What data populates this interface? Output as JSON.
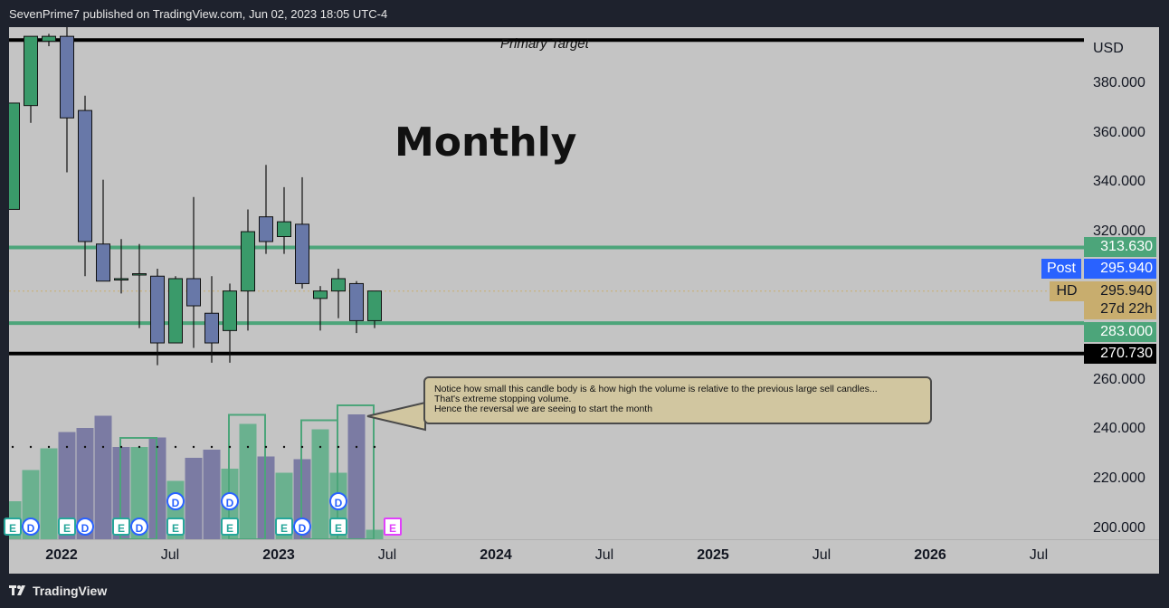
{
  "header": {
    "publisher": "SevenPrime7 published on TradingView.com, Jun 02, 2023 18:05 UTC-4"
  },
  "footer": {
    "brand": "TradingView",
    "logo_icon": "tradingview-logo-icon"
  },
  "annotations": {
    "chart_title": "Monthly",
    "primary_target": "Primary Target",
    "note_lines": [
      "Notice how small this candle body is & how high the volume is relative to the previous large sell candles...",
      "That's extreme stopping volume.",
      "Hence the reversal we are seeing to start the month"
    ]
  },
  "price_axis": {
    "currency": "USD",
    "ticks": [
      "380.000",
      "360.000",
      "340.000",
      "320.000",
      "260.000",
      "240.000",
      "220.000",
      "200.000"
    ]
  },
  "price_tags": {
    "upper_level": "313.630",
    "post_label": "Post",
    "post_price": "295.940",
    "hd_label": "HD",
    "hd_price": "295.940",
    "countdown": "27d 22h",
    "lower_level": "283.000",
    "support_level": "270.730"
  },
  "time_axis": {
    "labels": [
      {
        "text": "2022",
        "bold": true
      },
      {
        "text": "Jul",
        "bold": false
      },
      {
        "text": "2023",
        "bold": true
      },
      {
        "text": "Jul",
        "bold": false
      },
      {
        "text": "2024",
        "bold": true
      },
      {
        "text": "Jul",
        "bold": false
      },
      {
        "text": "2025",
        "bold": true
      },
      {
        "text": "Jul",
        "bold": false
      },
      {
        "text": "2026",
        "bold": true
      },
      {
        "text": "Jul",
        "bold": false
      }
    ]
  },
  "events": {
    "earnings": "E",
    "dividend": "D"
  },
  "colors": {
    "bull": "#3a9a6a",
    "bear": "#6878a8",
    "level_green": "#4ca57a",
    "level_black": "#000000",
    "post_blue": "#2962ff",
    "hd_gold": "#c8ad6e",
    "background": "#c4c4c4"
  },
  "chart_data": {
    "type": "candlestick",
    "timeframe": "Monthly",
    "currency": "USD",
    "ylim": [
      196,
      398
    ],
    "levels": [
      {
        "label": "Primary Target",
        "value": 397.5,
        "color": "#000000"
      },
      {
        "label": "",
        "value": 313.63,
        "color": "#4ca57a"
      },
      {
        "label": "",
        "value": 283.0,
        "color": "#4ca57a"
      },
      {
        "label": "",
        "value": 270.73,
        "color": "#000000"
      }
    ],
    "candles": [
      {
        "date": "2021-10",
        "open": 329,
        "high": 372,
        "low": 329,
        "close": 372
      },
      {
        "date": "2021-11",
        "open": 371,
        "high": 399,
        "low": 364,
        "close": 399
      },
      {
        "date": "2021-12",
        "open": 397,
        "high": 400,
        "low": 395,
        "close": 399
      },
      {
        "date": "2022-01",
        "open": 399,
        "high": 403,
        "low": 344,
        "close": 366
      },
      {
        "date": "2022-02",
        "open": 369,
        "high": 375,
        "low": 302,
        "close": 316
      },
      {
        "date": "2022-03",
        "open": 315,
        "high": 341,
        "low": 302,
        "close": 300
      },
      {
        "date": "2022-04",
        "open": 301,
        "high": 317,
        "low": 295,
        "close": 301
      },
      {
        "date": "2022-05",
        "open": 303,
        "high": 315,
        "low": 281,
        "close": 303
      },
      {
        "date": "2022-06",
        "open": 302,
        "high": 305,
        "low": 266,
        "close": 275
      },
      {
        "date": "2022-07",
        "open": 275,
        "high": 302,
        "low": 275,
        "close": 301
      },
      {
        "date": "2022-08",
        "open": 301,
        "high": 334,
        "low": 273,
        "close": 290
      },
      {
        "date": "2022-09",
        "open": 287,
        "high": 302,
        "low": 267,
        "close": 275
      },
      {
        "date": "2022-10",
        "open": 280,
        "high": 299,
        "low": 267,
        "close": 296
      },
      {
        "date": "2022-11",
        "open": 296,
        "high": 329,
        "low": 280,
        "close": 320
      },
      {
        "date": "2022-12",
        "open": 326,
        "high": 347,
        "low": 311,
        "close": 316
      },
      {
        "date": "2023-01",
        "open": 318,
        "high": 338,
        "low": 311,
        "close": 324
      },
      {
        "date": "2023-02",
        "open": 323,
        "high": 342,
        "low": 297,
        "close": 299
      },
      {
        "date": "2023-03",
        "open": 293,
        "high": 298,
        "low": 280,
        "close": 296
      },
      {
        "date": "2023-04",
        "open": 296,
        "high": 305,
        "low": 285,
        "close": 301
      },
      {
        "date": "2023-05",
        "open": 299,
        "high": 300,
        "low": 279,
        "close": 284
      },
      {
        "date": "2023-06",
        "open": 284,
        "high": 296,
        "low": 281,
        "close": 296
      }
    ],
    "volume": [
      {
        "date": "2021-10",
        "value": 0.28,
        "dir": "up"
      },
      {
        "date": "2021-11",
        "value": 0.51,
        "dir": "up"
      },
      {
        "date": "2021-12",
        "value": 0.67,
        "dir": "up"
      },
      {
        "date": "2022-01",
        "value": 0.79,
        "dir": "down"
      },
      {
        "date": "2022-02",
        "value": 0.82,
        "dir": "down"
      },
      {
        "date": "2022-03",
        "value": 0.91,
        "dir": "down"
      },
      {
        "date": "2022-04",
        "value": 0.68,
        "dir": "down"
      },
      {
        "date": "2022-05",
        "value": 0.68,
        "dir": "up"
      },
      {
        "date": "2022-06",
        "value": 0.75,
        "dir": "down"
      },
      {
        "date": "2022-07",
        "value": 0.43,
        "dir": "up"
      },
      {
        "date": "2022-08",
        "value": 0.6,
        "dir": "down"
      },
      {
        "date": "2022-09",
        "value": 0.66,
        "dir": "down"
      },
      {
        "date": "2022-10",
        "value": 0.52,
        "dir": "up"
      },
      {
        "date": "2022-11",
        "value": 0.85,
        "dir": "up"
      },
      {
        "date": "2022-12",
        "value": 0.61,
        "dir": "down"
      },
      {
        "date": "2023-01",
        "value": 0.49,
        "dir": "up"
      },
      {
        "date": "2023-02",
        "value": 0.59,
        "dir": "down"
      },
      {
        "date": "2023-03",
        "value": 0.81,
        "dir": "up"
      },
      {
        "date": "2023-04",
        "value": 0.49,
        "dir": "up"
      },
      {
        "date": "2023-05",
        "value": 0.92,
        "dir": "down"
      },
      {
        "date": "2023-06",
        "value": 0.07,
        "dir": "up"
      }
    ],
    "highlighted_volume_months": [
      "2022-05",
      "2022-11",
      "2023-03",
      "2023-05"
    ],
    "volume_event_markers": [
      {
        "date": "2021-10",
        "events": [
          "E"
        ]
      },
      {
        "date": "2021-11",
        "events": [
          "D"
        ]
      },
      {
        "date": "2022-01",
        "events": [
          "E"
        ]
      },
      {
        "date": "2022-02",
        "events": [
          "D"
        ]
      },
      {
        "date": "2022-04",
        "events": [
          "E"
        ]
      },
      {
        "date": "2022-05",
        "events": [
          "D"
        ]
      },
      {
        "date": "2022-07",
        "events": [
          "E",
          "D"
        ]
      },
      {
        "date": "2022-10",
        "events": [
          "E",
          "D"
        ]
      },
      {
        "date": "2023-01",
        "events": [
          "E"
        ]
      },
      {
        "date": "2023-02",
        "events": [
          "D"
        ]
      },
      {
        "date": "2023-04",
        "events": [
          "E",
          "D"
        ]
      },
      {
        "date": "2023-07",
        "events": [
          "E"
        ]
      }
    ]
  }
}
